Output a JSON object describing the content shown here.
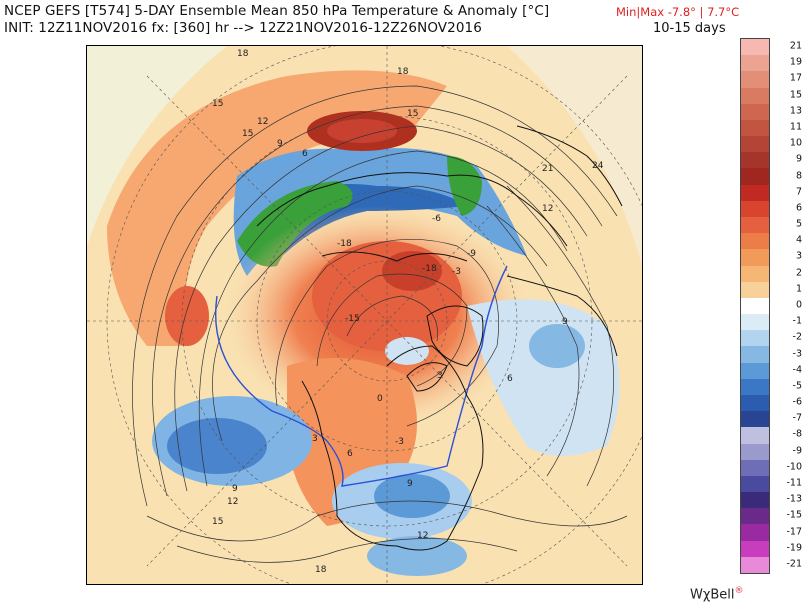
{
  "header": {
    "title_line1": "NCEP GEFS [T574] 5-DAY Ensemble Mean 850 hPa Temperature & Anomaly [°C]",
    "title_line2": "INIT: 12Z11NOV2016 fx: [360] hr --> 12Z21NOV2016-12Z26NOV2016",
    "minmax": "Min|Max -7.8° | 7.7°C",
    "period": "10-15 days"
  },
  "colorbar": {
    "labels": [
      "21",
      "19",
      "17",
      "15",
      "13",
      "11",
      "10",
      "9",
      "8",
      "7",
      "6",
      "5",
      "4",
      "3",
      "2",
      "1",
      "0",
      "-1",
      "-2",
      "-3",
      "-4",
      "-5",
      "-6",
      "-7",
      "-8",
      "-9",
      "-10",
      "-11",
      "-13",
      "-15",
      "-17",
      "-19",
      "-21"
    ],
    "colors": [
      "#f6b8b0",
      "#eda392",
      "#e38f78",
      "#d97a62",
      "#cf6650",
      "#c25442",
      "#b44436",
      "#a4342c",
      "#a02620",
      "#c02a22",
      "#d8442e",
      "#e4603e",
      "#ec7c48",
      "#f29a5a",
      "#f6b676",
      "#f8d09a",
      "#ffffff",
      "#dcecf6",
      "#b2d4ee",
      "#86b8e4",
      "#5b9ad6",
      "#3a78c6",
      "#2a5cb0",
      "#2a4494",
      "#bfbfdf",
      "#9a9acc",
      "#6e6eb6",
      "#4a4a9e",
      "#3a2a7a",
      "#6a2a8a",
      "#9a2aa2",
      "#c83cbe",
      "#e88ad8"
    ]
  },
  "contour_labels": [
    {
      "text": "18"
    },
    {
      "text": "15"
    },
    {
      "text": "12"
    },
    {
      "text": "15"
    },
    {
      "text": "9"
    },
    {
      "text": "6"
    },
    {
      "text": "-18"
    },
    {
      "text": "-15"
    },
    {
      "text": "-18"
    },
    {
      "text": "-9"
    },
    {
      "text": "9"
    },
    {
      "text": "12"
    },
    {
      "text": "15"
    },
    {
      "text": "18"
    },
    {
      "text": "21"
    },
    {
      "text": "24"
    },
    {
      "text": "9"
    },
    {
      "text": "6"
    },
    {
      "text": "3"
    },
    {
      "text": "-3"
    },
    {
      "text": "-6"
    },
    {
      "text": "12"
    },
    {
      "text": "15"
    },
    {
      "text": "9"
    },
    {
      "text": "12"
    },
    {
      "text": "18"
    },
    {
      "text": "6"
    },
    {
      "text": "3"
    },
    {
      "text": "0"
    },
    {
      "text": "-3"
    }
  ],
  "brand": {
    "text": "WχBell",
    "dot": "®"
  }
}
